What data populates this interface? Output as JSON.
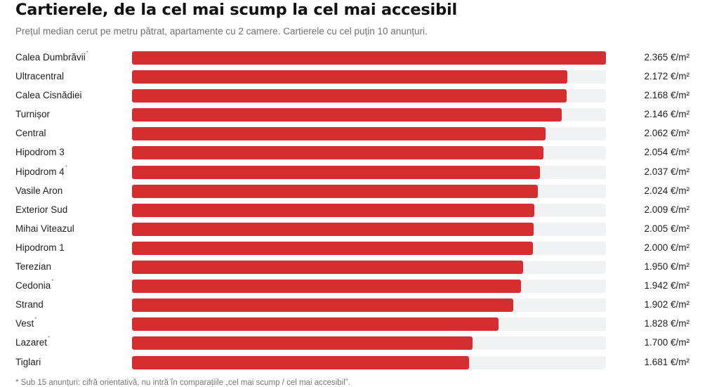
{
  "title": "Cartierele, de la cel mai scump la cel mai accesibil",
  "subtitle": "Prețul median cerut pe metru pătrat, apartamente cu 2 camere. Cartierele cu cel puțin 10 anunțuri.",
  "footnote": "* Sub 15 anunțuri: cifră orientativă, nu intră în comparațiile „cel mai scump / cel mai accesibil”.",
  "colors": {
    "bar": "#d42e30",
    "track": "#f1f2f4"
  },
  "chart_data": {
    "type": "bar",
    "orientation": "horizontal",
    "unit": "€/m²",
    "xlim": [
      0,
      2365
    ],
    "rows": [
      {
        "label": "Calea Dumbrăvii",
        "note": "*",
        "value": 2365,
        "value_label": "2.365 €/m²"
      },
      {
        "label": "Ultracentral",
        "note": "",
        "value": 2172,
        "value_label": "2.172 €/m²"
      },
      {
        "label": "Calea Cisnădiei",
        "note": "",
        "value": 2168,
        "value_label": "2.168 €/m²"
      },
      {
        "label": "Turnișor",
        "note": "",
        "value": 2146,
        "value_label": "2.146 €/m²"
      },
      {
        "label": "Central",
        "note": "",
        "value": 2062,
        "value_label": "2.062 €/m²"
      },
      {
        "label": "Hipodrom 3",
        "note": "",
        "value": 2054,
        "value_label": "2.054 €/m²"
      },
      {
        "label": "Hipodrom 4",
        "note": "*",
        "value": 2037,
        "value_label": "2.037 €/m²"
      },
      {
        "label": "Vasile Aron",
        "note": "",
        "value": 2024,
        "value_label": "2.024 €/m²"
      },
      {
        "label": "Exterior Sud",
        "note": "",
        "value": 2009,
        "value_label": "2.009 €/m²"
      },
      {
        "label": "Mihai Viteazul",
        "note": "",
        "value": 2005,
        "value_label": "2.005 €/m²"
      },
      {
        "label": "Hipodrom 1",
        "note": "",
        "value": 2000,
        "value_label": "2.000 €/m²"
      },
      {
        "label": "Terezian",
        "note": "",
        "value": 1950,
        "value_label": "1.950 €/m²"
      },
      {
        "label": "Cedonia",
        "note": "*",
        "value": 1942,
        "value_label": "1.942 €/m²"
      },
      {
        "label": "Strand",
        "note": "",
        "value": 1902,
        "value_label": "1.902 €/m²"
      },
      {
        "label": "Vest",
        "note": "*",
        "value": 1828,
        "value_label": "1.828 €/m²"
      },
      {
        "label": "Lazaret",
        "note": "*",
        "value": 1700,
        "value_label": "1.700 €/m²"
      },
      {
        "label": "Tiglari",
        "note": "",
        "value": 1681,
        "value_label": "1.681 €/m²"
      }
    ]
  }
}
